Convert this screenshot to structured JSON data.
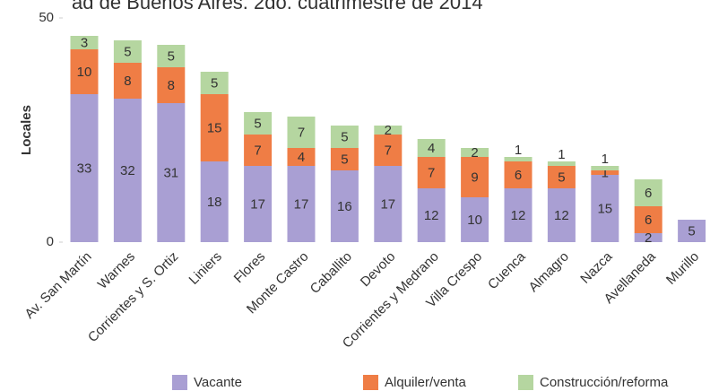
{
  "chart_data": {
    "type": "stacked_bar",
    "title": "ad de Buenos Aires. 2do. cuatrimestre de 2014",
    "y_label": "Locales",
    "categories": [
      "Av. San Martín",
      "Warnes",
      "Corrientes y S. Ortiz",
      "Liniers",
      "Flores",
      "Monte Castro",
      "Caballito",
      "Devoto",
      "Corrientes y Medrano",
      "Villa Crespo",
      "Cuenca",
      "Almagro",
      "Nazca",
      "Avellaneda",
      "Murillo"
    ],
    "series": [
      {
        "name": "Vacante",
        "color": "#a99fd3",
        "values": [
          33,
          32,
          31,
          18,
          17,
          17,
          16,
          17,
          12,
          10,
          12,
          12,
          15,
          2,
          5
        ]
      },
      {
        "name": "Alquiler/venta",
        "color": "#ef7d45",
        "values": [
          10,
          8,
          8,
          15,
          7,
          4,
          5,
          7,
          7,
          9,
          6,
          5,
          1,
          6,
          null
        ]
      },
      {
        "name": "Construcción/reforma",
        "color": "#b5d6a0",
        "values": [
          3,
          5,
          5,
          5,
          5,
          7,
          5,
          2,
          4,
          2,
          1,
          1,
          1,
          6,
          null
        ]
      }
    ],
    "ylim": [
      0,
      50
    ],
    "yticks": [
      0,
      50
    ],
    "legend": "bottom"
  }
}
